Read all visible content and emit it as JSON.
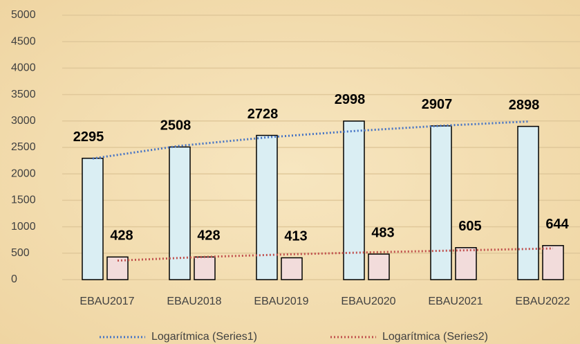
{
  "chart_data": {
    "type": "bar",
    "categories": [
      "EBAU2017",
      "EBAU2018",
      "EBAU2019",
      "EBAU2020",
      "EBAU2021",
      "EBAU2022"
    ],
    "series": [
      {
        "color": "#daeef3",
        "values": [
          2295,
          2508,
          2728,
          2998,
          2907,
          2898
        ]
      },
      {
        "color": "#f2dcdb",
        "values": [
          428,
          428,
          413,
          483,
          605,
          644
        ]
      }
    ],
    "trendlines": [
      {
        "name": "Logarítmica (Series1)",
        "color": "#4472c4",
        "values": [
          2290,
          2530,
          2690,
          2810,
          2910,
          2990
        ]
      },
      {
        "name": "Logarítmica (Series2)",
        "color": "#c0504d",
        "values": [
          360,
          430,
          480,
          520,
          555,
          590
        ]
      }
    ],
    "ylim": [
      0,
      5000
    ],
    "yticks": [
      0,
      500,
      1000,
      1500,
      2000,
      2500,
      3000,
      3500,
      4000,
      4500,
      5000
    ],
    "grid": true
  }
}
